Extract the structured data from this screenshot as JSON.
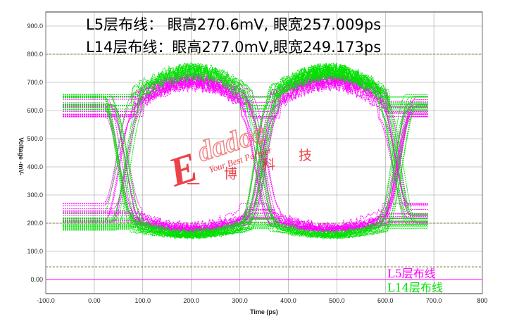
{
  "chart_data": {
    "type": "line",
    "title_lines": [
      "L5层布线： 眼高270.6mV, 眼宽257.009ps",
      "L14层布线：眼高277.0mV,眼宽249.173ps"
    ],
    "xlabel": "Time  (ps)",
    "ylabel": "Voltage  -mV-",
    "xlim": [
      -100,
      800
    ],
    "ylim": [
      -50,
      950
    ],
    "x_ticks": [
      "-100.0",
      "0.00",
      "100.0",
      "200.0",
      "300.0",
      "400.0",
      "500.0",
      "600.0",
      "700.0",
      "800"
    ],
    "y_ticks": [
      "0.00",
      "100.0",
      "200.0",
      "300.0",
      "400.0",
      "500.0",
      "600.0",
      "700.0",
      "800.0",
      "900.0"
    ],
    "grid": true,
    "legend_position": "bottom-right",
    "reference_lines": [
      800,
      200,
      45,
      0
    ],
    "series": [
      {
        "name": "L5层布线",
        "color": "#ff00ff",
        "eye": {
          "high_level": 610,
          "low_level": 235,
          "high_spread": 40,
          "low_spread": 40,
          "overshoot_high": 745,
          "undershoot_low": 160,
          "crossings": [
            60,
            342,
            625
          ],
          "trace_start": -65,
          "trace_end": 690,
          "eye_height_mV": 270.6,
          "eye_width_ps": 257.009
        }
      },
      {
        "name": "L14层布线",
        "color": "#00e000",
        "eye": {
          "high_level": 630,
          "low_level": 205,
          "high_spread": 30,
          "low_spread": 30,
          "overshoot_high": 785,
          "undershoot_low": 140,
          "crossings": [
            60,
            342,
            625
          ],
          "trace_start": -65,
          "trace_end": 690,
          "eye_height_mV": 277.0,
          "eye_width_ps": 249.173
        }
      }
    ]
  },
  "watermark": {
    "brand": "Edadoc",
    "tagline": "Your Best Partner",
    "cn": [
      "一",
      "博",
      "科",
      "技"
    ]
  }
}
